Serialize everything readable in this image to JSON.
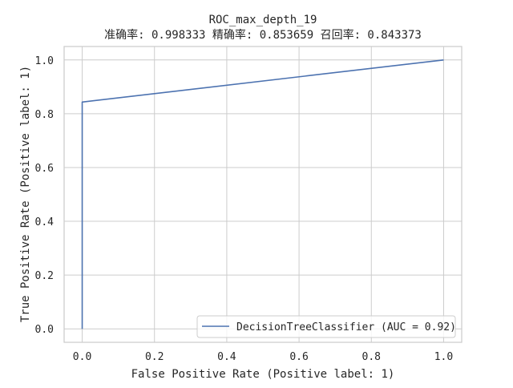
{
  "chart_data": {
    "type": "line",
    "title": "ROC_max_depth_19",
    "subtitle": "准确率: 0.998333 精确率: 0.853659 召回率: 0.843373",
    "xlabel": "False Positive Rate (Positive label: 1)",
    "ylabel": "True Positive Rate (Positive label: 1)",
    "xlim": [
      -0.05,
      1.05
    ],
    "ylim": [
      -0.05,
      1.05
    ],
    "xticks": [
      0.0,
      0.2,
      0.4,
      0.6,
      0.8,
      1.0
    ],
    "xtick_labels": [
      "0.0",
      "0.2",
      "0.4",
      "0.6",
      "0.8",
      "1.0"
    ],
    "yticks": [
      0.0,
      0.2,
      0.4,
      0.6,
      0.8,
      1.0
    ],
    "ytick_labels": [
      "0.0",
      "0.2",
      "0.4",
      "0.6",
      "0.8",
      "1.0"
    ],
    "grid": true,
    "legend_position": "lower-right",
    "series": [
      {
        "name": "DecisionTreeClassifier (AUC = 0.92)",
        "color": "#4c72b0",
        "x": [
          0.0,
          0.0,
          1.0
        ],
        "y": [
          0.0,
          0.843373,
          1.0
        ]
      }
    ]
  },
  "colors": {
    "grid": "#cccccc",
    "axes_edge": "#cccccc",
    "background": "#ffffff",
    "text": "#262626"
  }
}
